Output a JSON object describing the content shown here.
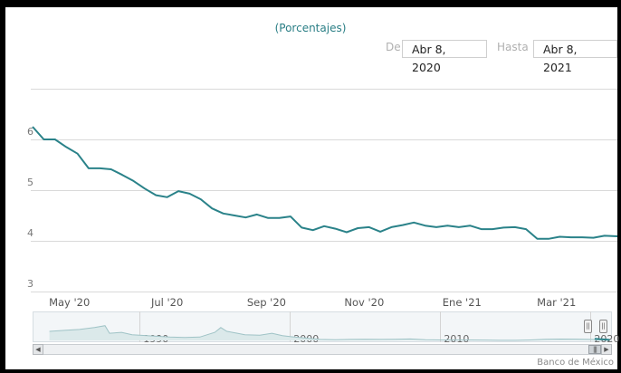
{
  "chart_data": {
    "type": "line",
    "title": "(Porcentajes)",
    "range_selector": {
      "from_label": "De",
      "from_value": "Abr 8, 2020",
      "to_label": "Hasta",
      "to_value": "Abr 8, 2021"
    },
    "y_ticks": [
      "3",
      "4",
      "5",
      "6"
    ],
    "ylim": [
      3,
      7
    ],
    "x_ticks": [
      "May '20",
      "Jul '20",
      "Sep '20",
      "Nov '20",
      "Ene '21",
      "Mar '21"
    ],
    "series": [
      {
        "color": "#2a8289",
        "points": [
          [
            "2020-04-08",
            6.25
          ],
          [
            "2020-04-15",
            6.0
          ],
          [
            "2020-04-22",
            6.0
          ],
          [
            "2020-04-29",
            5.85
          ],
          [
            "2020-05-06",
            5.72
          ],
          [
            "2020-05-13",
            5.43
          ],
          [
            "2020-05-20",
            5.43
          ],
          [
            "2020-05-27",
            5.41
          ],
          [
            "2020-06-03",
            5.3
          ],
          [
            "2020-06-10",
            5.18
          ],
          [
            "2020-06-17",
            5.03
          ],
          [
            "2020-06-24",
            4.9
          ],
          [
            "2020-07-01",
            4.86
          ],
          [
            "2020-07-08",
            4.98
          ],
          [
            "2020-07-15",
            4.93
          ],
          [
            "2020-07-22",
            4.82
          ],
          [
            "2020-07-29",
            4.64
          ],
          [
            "2020-08-05",
            4.54
          ],
          [
            "2020-08-12",
            4.5
          ],
          [
            "2020-08-19",
            4.46
          ],
          [
            "2020-08-26",
            4.52
          ],
          [
            "2020-09-02",
            4.45
          ],
          [
            "2020-09-09",
            4.45
          ],
          [
            "2020-09-16",
            4.48
          ],
          [
            "2020-09-23",
            4.26
          ],
          [
            "2020-09-30",
            4.21
          ],
          [
            "2020-10-07",
            4.29
          ],
          [
            "2020-10-14",
            4.24
          ],
          [
            "2020-10-21",
            4.17
          ],
          [
            "2020-10-28",
            4.25
          ],
          [
            "2020-11-04",
            4.27
          ],
          [
            "2020-11-11",
            4.18
          ],
          [
            "2020-11-18",
            4.27
          ],
          [
            "2020-11-25",
            4.31
          ],
          [
            "2020-12-02",
            4.36
          ],
          [
            "2020-12-09",
            4.3
          ],
          [
            "2020-12-16",
            4.27
          ],
          [
            "2020-12-23",
            4.3
          ],
          [
            "2020-12-30",
            4.27
          ],
          [
            "2021-01-06",
            4.3
          ],
          [
            "2021-01-13",
            4.23
          ],
          [
            "2021-01-20",
            4.23
          ],
          [
            "2021-01-27",
            4.26
          ],
          [
            "2021-02-03",
            4.27
          ],
          [
            "2021-02-10",
            4.23
          ],
          [
            "2021-02-17",
            4.04
          ],
          [
            "2021-02-24",
            4.04
          ],
          [
            "2021-03-03",
            4.08
          ],
          [
            "2021-03-10",
            4.07
          ],
          [
            "2021-03-17",
            4.07
          ],
          [
            "2021-03-24",
            4.06
          ],
          [
            "2021-03-31",
            4.1
          ],
          [
            "2021-04-08",
            4.09
          ]
        ]
      }
    ],
    "navigator": {
      "labels": [
        "1990",
        "2000",
        "2010",
        "2020"
      ],
      "xlim": [
        1983,
        2021.3
      ],
      "ylim": [
        3,
        60
      ],
      "points": [
        [
          1984,
          22
        ],
        [
          1985,
          24
        ],
        [
          1986,
          26
        ],
        [
          1987,
          30
        ],
        [
          1987.7,
          34
        ],
        [
          1988,
          18
        ],
        [
          1988.8,
          20
        ],
        [
          1989.5,
          15
        ],
        [
          1990,
          14
        ],
        [
          1991,
          12
        ],
        [
          1992,
          10
        ],
        [
          1993,
          9
        ],
        [
          1994,
          10
        ],
        [
          1995,
          20
        ],
        [
          1995.4,
          30
        ],
        [
          1995.8,
          22
        ],
        [
          1996.5,
          18
        ],
        [
          1997,
          15
        ],
        [
          1998,
          14
        ],
        [
          1998.8,
          18
        ],
        [
          1999.5,
          13
        ],
        [
          2000,
          11
        ],
        [
          2001,
          8
        ],
        [
          2002,
          5
        ],
        [
          2003,
          4.5
        ],
        [
          2004,
          5
        ],
        [
          2005,
          5.5
        ],
        [
          2006,
          5
        ],
        [
          2007,
          5.5
        ],
        [
          2008,
          6
        ],
        [
          2009,
          4.5
        ],
        [
          2010,
          4
        ],
        [
          2011,
          4
        ],
        [
          2012,
          4
        ],
        [
          2013,
          3.7
        ],
        [
          2014,
          3.2
        ],
        [
          2015,
          3.1
        ],
        [
          2016,
          4
        ],
        [
          2017,
          5.2
        ],
        [
          2018,
          5.8
        ],
        [
          2019,
          5.6
        ],
        [
          2020,
          5
        ],
        [
          2021,
          4.1
        ]
      ]
    },
    "credit": "Banco de México"
  }
}
